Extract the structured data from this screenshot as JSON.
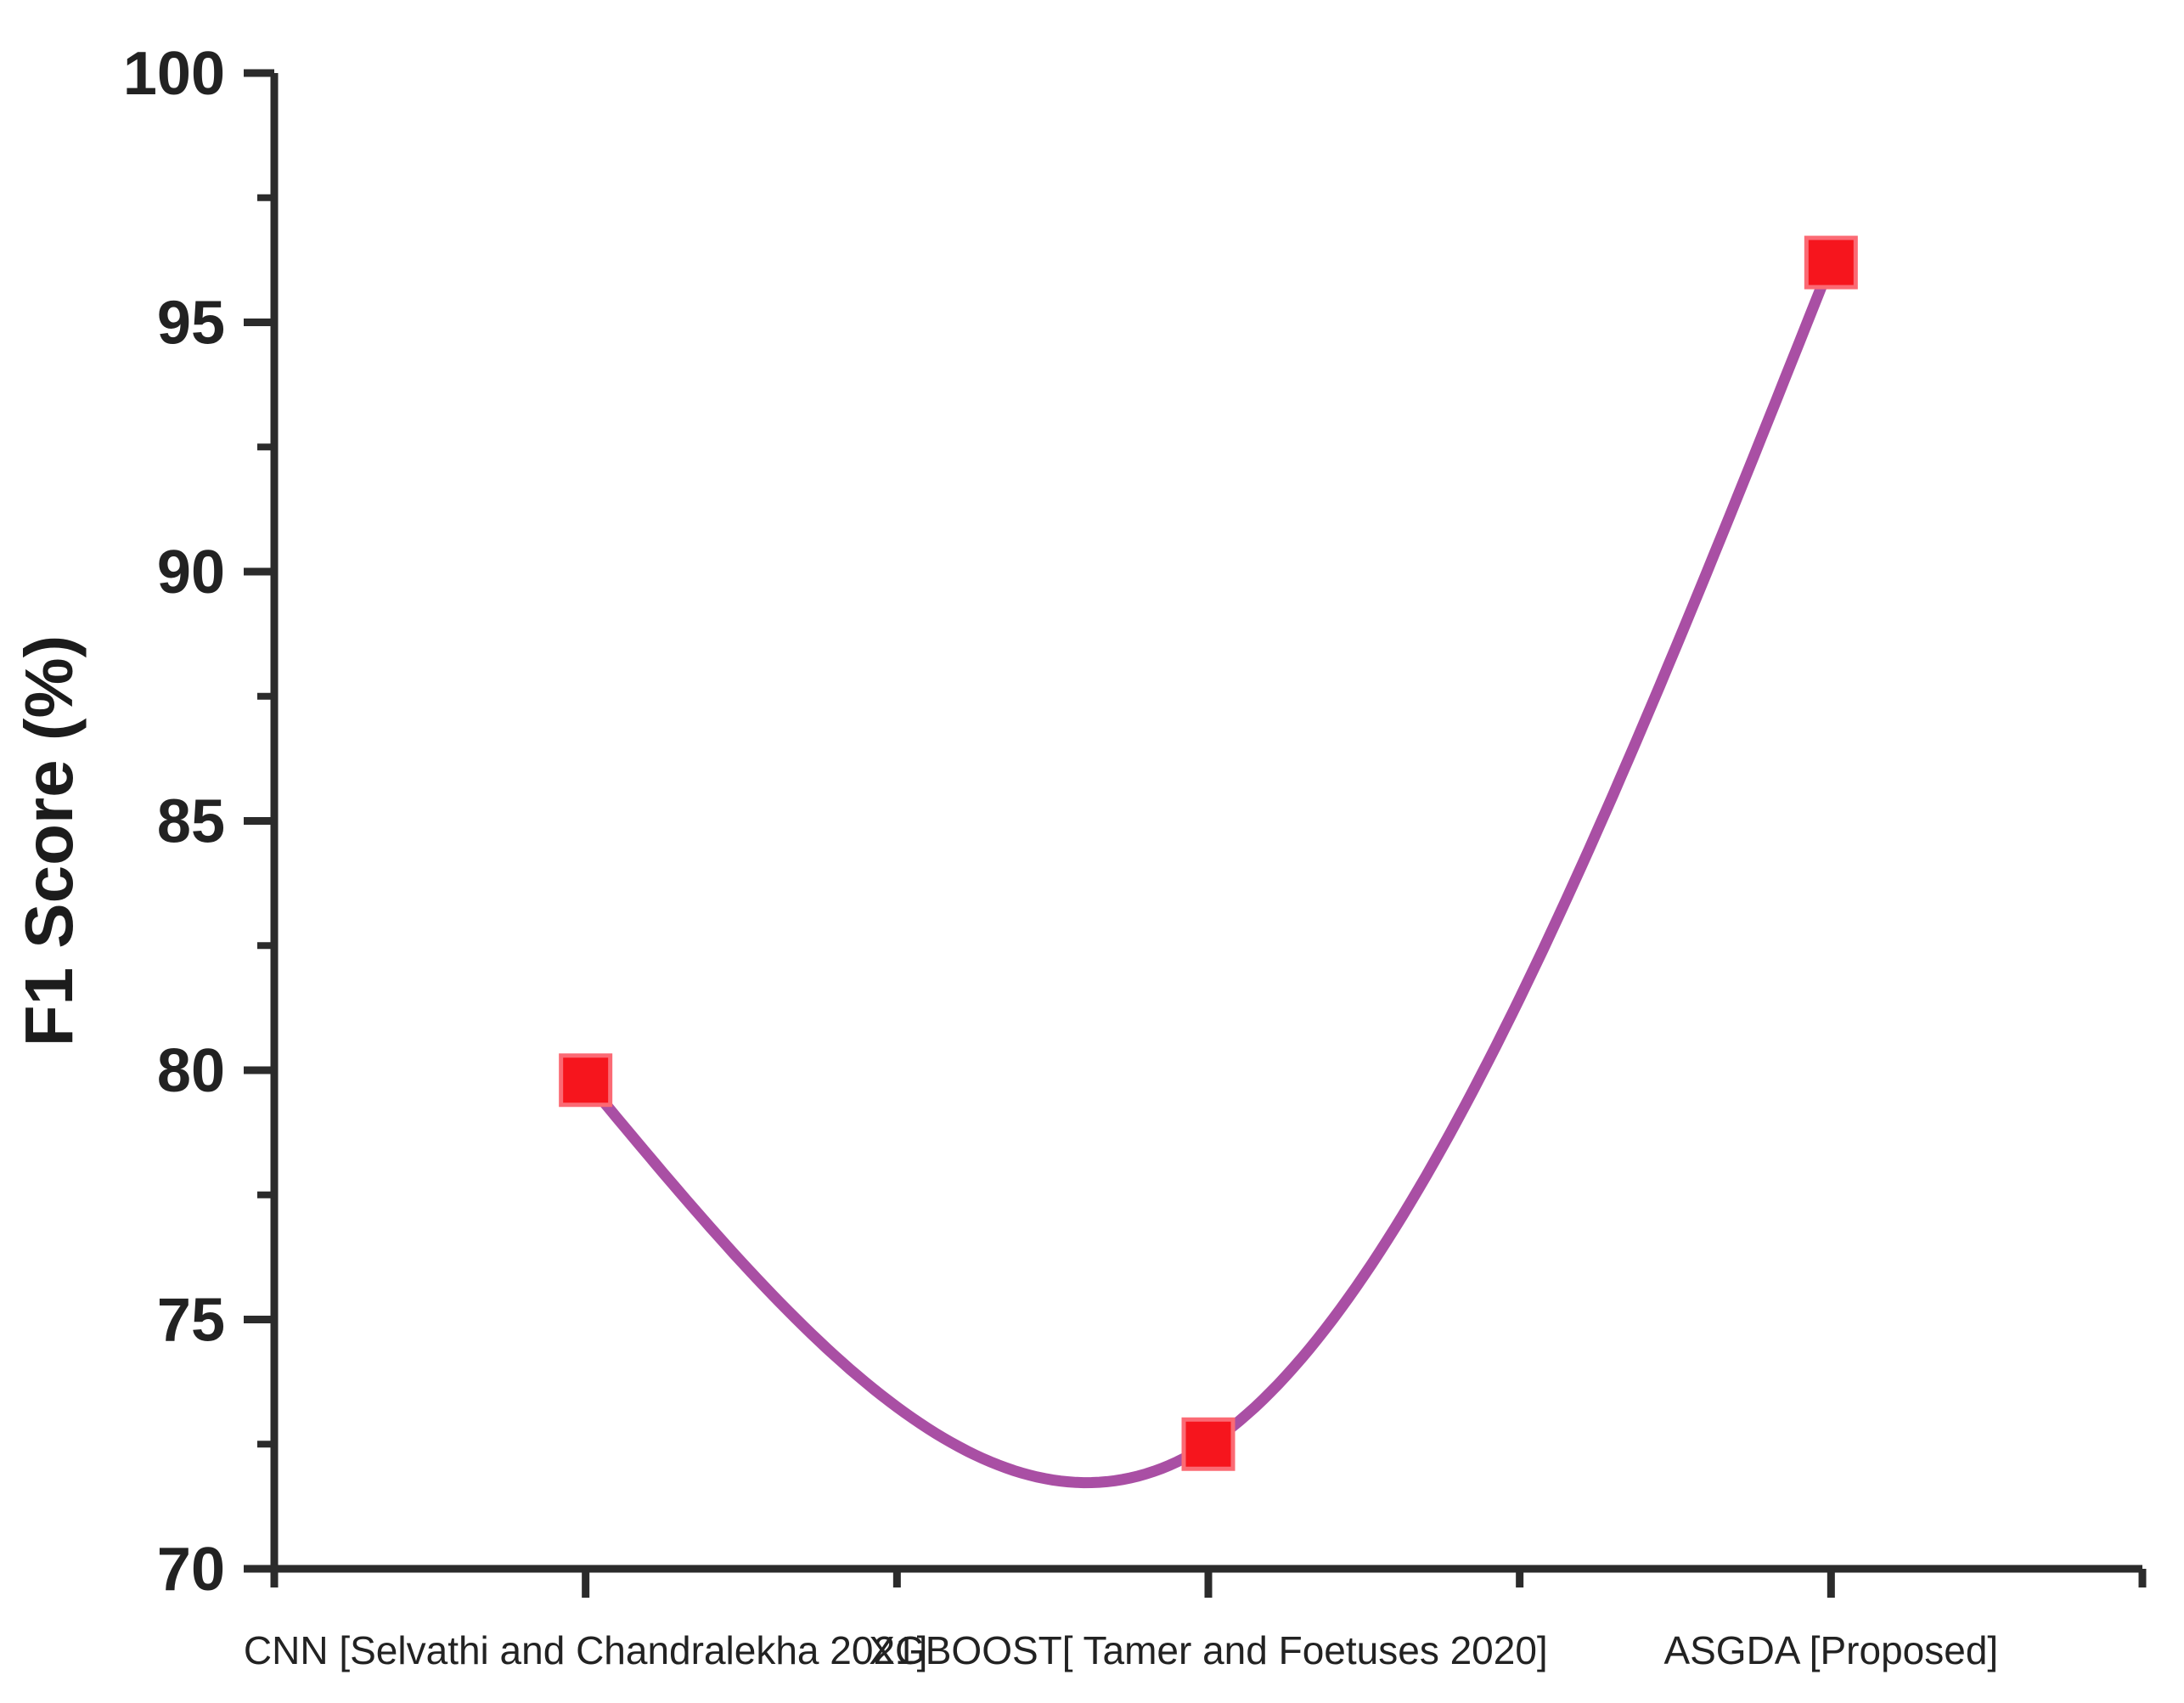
{
  "figure": {
    "background": "#ffffff"
  },
  "chart_data": {
    "type": "line",
    "title": "",
    "xlabel": "",
    "ylabel": "F1 Score (%)",
    "categories": [
      "CNN [Selvathi and Chandralekha 2021]",
      "XGBOOST[ Tamer and Foetuses 2020]",
      "ASGDA [Proposed]"
    ],
    "series": [
      {
        "name": "F1 Score",
        "values": [
          79.8,
          72.5,
          96.2
        ]
      }
    ],
    "ylim": [
      70,
      100
    ],
    "y_major_ticks": [
      "70",
      "75",
      "80",
      "85",
      "90",
      "95",
      "100"
    ],
    "y_major_tick_values": [
      70,
      75,
      80,
      85,
      90,
      95,
      100
    ],
    "y_minor_tick_values": [
      72.5,
      77.5,
      82.5,
      87.5,
      92.5,
      97.5
    ],
    "grid": false,
    "legend_position": "none",
    "curve_style": "natural-spline",
    "marker_shape": "square",
    "colors": {
      "line": "#A94FA4",
      "marker_fill": "#F6151D",
      "marker_edge": "#FB6A74",
      "axis": "#2b2b2b",
      "tick_label": "#222222",
      "axis_title": "#1c1c1c"
    }
  }
}
